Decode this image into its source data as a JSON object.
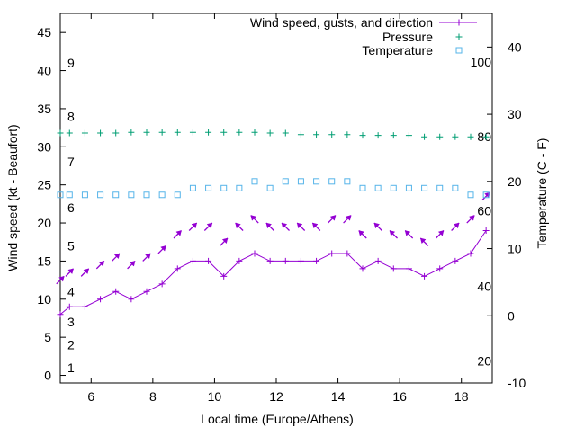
{
  "chart_data": {
    "type": "line",
    "title": "",
    "xlabel": "Local time (Europe/Athens)",
    "ylabel": "Wind speed (kt - Beaufort)",
    "y2label": "Temperature (C - F)",
    "xlim": [
      5,
      19
    ],
    "ylim": [
      -1,
      47.5
    ],
    "y2lim": [
      -10,
      45
    ],
    "x_ticks": [
      6,
      8,
      10,
      12,
      14,
      16,
      18
    ],
    "y_ticks": [
      0,
      5,
      10,
      15,
      20,
      25,
      30,
      35,
      40,
      45
    ],
    "y2_ticks": [
      -10,
      0,
      10,
      20,
      30,
      40
    ],
    "beaufort_labels": [
      {
        "label": "1",
        "kt": 1
      },
      {
        "label": "2",
        "kt": 4
      },
      {
        "label": "3",
        "kt": 7
      },
      {
        "label": "4",
        "kt": 11
      },
      {
        "label": "5",
        "kt": 17
      },
      {
        "label": "6",
        "kt": 22
      },
      {
        "label": "7",
        "kt": 28
      },
      {
        "label": "8",
        "kt": 34
      },
      {
        "label": "9",
        "kt": 41
      }
    ],
    "fahrenheit_labels": [
      {
        "label": "20",
        "c": -6.7
      },
      {
        "label": "40",
        "c": 4.4
      },
      {
        "label": "60",
        "c": 15.6
      },
      {
        "label": "80",
        "c": 26.7
      },
      {
        "label": "100",
        "c": 37.8
      }
    ],
    "legend": [
      {
        "name": "Wind speed, gusts, and direction",
        "color": "#9400d3",
        "marker": "plus-line"
      },
      {
        "name": "Pressure",
        "color": "#009e73",
        "marker": "plus"
      },
      {
        "name": "Temperature",
        "color": "#56b4e9",
        "marker": "square"
      }
    ],
    "legend_position": "top-right",
    "series": [
      {
        "name": "Wind speed",
        "color": "#9400d3",
        "x": [
          5.0,
          5.3,
          5.8,
          6.3,
          6.8,
          7.3,
          7.8,
          8.3,
          8.8,
          9.3,
          9.8,
          10.3,
          10.8,
          11.3,
          11.8,
          12.3,
          12.8,
          13.3,
          13.8,
          14.3,
          14.8,
          15.3,
          15.8,
          16.3,
          16.8,
          17.3,
          17.8,
          18.3,
          18.8
        ],
        "values": [
          8,
          9,
          9,
          10,
          11,
          10,
          11,
          12,
          14,
          15,
          15,
          13,
          15,
          16,
          15,
          15,
          15,
          15,
          16,
          16,
          14,
          15,
          14,
          14,
          13,
          14,
          15,
          16,
          19
        ]
      },
      {
        "name": "Gusts",
        "color": "#9400d3",
        "x": [
          5.0,
          5.3,
          5.8,
          6.3,
          6.8,
          7.3,
          7.8,
          8.3,
          8.8,
          9.3,
          9.8,
          10.3,
          10.8,
          11.3,
          11.8,
          12.3,
          12.8,
          13.3,
          13.8,
          14.3,
          14.8,
          15.3,
          15.8,
          16.3,
          16.8,
          17.3,
          17.8,
          18.3,
          18.8
        ],
        "values": [
          12.5,
          13.5,
          13.5,
          14.5,
          15.5,
          14.5,
          15.5,
          16.5,
          18.5,
          19.5,
          19.5,
          17.5,
          19.5,
          20.5,
          19.5,
          19.5,
          19.5,
          19.5,
          20.5,
          20.5,
          18.5,
          19.5,
          18.5,
          18.5,
          17.5,
          18.5,
          19.5,
          20.5,
          23.5
        ],
        "direction_deg": [
          45,
          45,
          45,
          45,
          45,
          45,
          45,
          45,
          45,
          45,
          45,
          45,
          315,
          315,
          315,
          315,
          315,
          315,
          45,
          45,
          315,
          315,
          315,
          315,
          315,
          45,
          45,
          45,
          45
        ]
      },
      {
        "name": "Pressure",
        "color": "#009e73",
        "x": [
          5.0,
          5.3,
          5.8,
          6.3,
          6.8,
          7.3,
          7.8,
          8.3,
          8.8,
          9.3,
          9.8,
          10.3,
          10.8,
          11.3,
          11.8,
          12.3,
          12.8,
          13.3,
          13.8,
          14.3,
          14.8,
          15.3,
          15.8,
          16.3,
          16.8,
          17.3,
          17.8,
          18.3,
          18.8
        ],
        "values": [
          31.8,
          31.8,
          31.8,
          31.8,
          31.8,
          31.9,
          31.9,
          31.9,
          31.9,
          31.9,
          31.9,
          31.9,
          31.9,
          31.9,
          31.8,
          31.8,
          31.6,
          31.6,
          31.6,
          31.6,
          31.5,
          31.5,
          31.5,
          31.5,
          31.3,
          31.3,
          31.3,
          31.3,
          31.3
        ]
      },
      {
        "name": "Temperature",
        "color": "#56b4e9",
        "x": [
          5.0,
          5.3,
          5.8,
          6.3,
          6.8,
          7.3,
          7.8,
          8.3,
          8.8,
          9.3,
          9.8,
          10.3,
          10.8,
          11.3,
          11.8,
          12.3,
          12.8,
          13.3,
          13.8,
          14.3,
          14.8,
          15.3,
          15.8,
          16.3,
          16.8,
          17.3,
          17.8,
          18.3,
          18.8
        ],
        "values": [
          18,
          18,
          18,
          18,
          18,
          18,
          18,
          18,
          18,
          19,
          19,
          19,
          19,
          20,
          19,
          20,
          20,
          20,
          20,
          20,
          19,
          19,
          19,
          19,
          19,
          19,
          19,
          18,
          18
        ]
      }
    ]
  }
}
